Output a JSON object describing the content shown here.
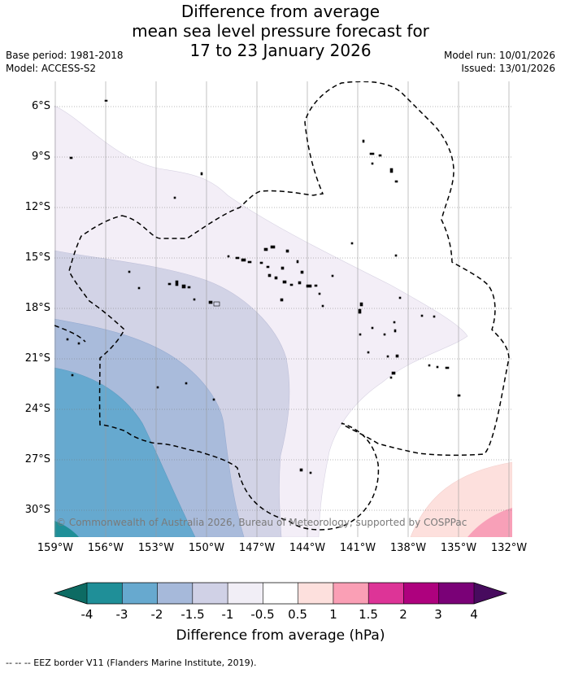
{
  "title": {
    "line1": "Difference from average",
    "line2": "mean sea level pressure forecast for",
    "line3": "17 to 23 January 2026"
  },
  "meta": {
    "base_period": "Base period: 1981-2018",
    "model": "Model: ACCESS-S2",
    "model_run": "Model run: 10/01/2026",
    "issued": "Issued: 13/01/2026"
  },
  "map": {
    "lat_labels": [
      "6°S",
      "9°S",
      "12°S",
      "15°S",
      "18°S",
      "21°S",
      "24°S",
      "27°S",
      "30°S"
    ],
    "lon_labels": [
      "159°W",
      "156°W",
      "153°W",
      "150°W",
      "147°W",
      "144°W",
      "141°W",
      "138°W",
      "135°W",
      "132°W"
    ],
    "copyright": "© Commonwealth of Australia 2026, Bureau of Meteorology, supported by COSPPac"
  },
  "colorbar": {
    "title": "Difference from average (hPa)",
    "ticks": [
      "-4",
      "-3",
      "-2",
      "-1.5",
      "-1",
      "-0.5",
      "0.5",
      "1",
      "1.5",
      "2",
      "3",
      "4"
    ],
    "under_color": "#0d6b63",
    "over_color": "#470b5e",
    "colors": [
      "#1f8f98",
      "#67a9cf",
      "#a6b9da",
      "#d0d1e6",
      "#f1eef6",
      "#ffffff",
      "#fde0dd",
      "#fa9fb5",
      "#dd3497",
      "#ae017e",
      "#7a0177"
    ]
  },
  "footer": "--  --  -- EEZ border V11 (Flanders Marine Institute, 2019)."
}
